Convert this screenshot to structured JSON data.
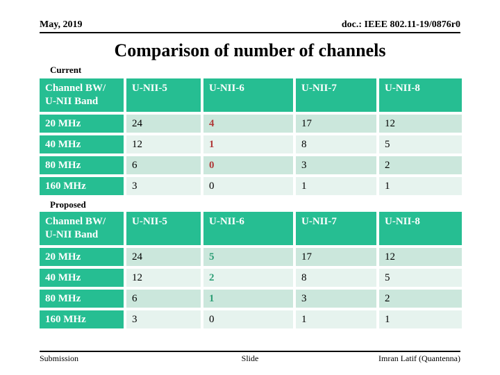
{
  "page": {
    "header_left": "May, 2019",
    "header_right": "doc.: IEEE 802.11-19/0876r0",
    "title": "Comparison of number of channels",
    "footer_left": "Submission",
    "footer_center": "Slide",
    "footer_right": "Imran Latif (Quantenna)"
  },
  "colors": {
    "table_green": "#26BE92",
    "row_light": "#CBE7DC",
    "row_lighter": "#E6F3EE",
    "highlight_red": "#B03A3A",
    "highlight_green": "#2E9E76",
    "header_text": "#FFFFFF"
  },
  "highlight_rules": [
    {
      "table": "Current",
      "column": "U-NII-6",
      "color_name": "red",
      "rows_affected": [
        "20 MHz",
        "40 MHz",
        "80 MHz"
      ]
    },
    {
      "table": "Proposed",
      "column": "U-NII-6",
      "color_name": "green",
      "rows_affected": [
        "20 MHz",
        "40 MHz",
        "80 MHz"
      ]
    }
  ],
  "tables": [
    {
      "label": "Current",
      "columns": [
        "Channel BW/ U-NII Band",
        "U-NII-5",
        "U-NII-6",
        "U-NII-7",
        "U-NII-8"
      ],
      "rows": [
        {
          "label": "20 MHz",
          "cells": [
            "24",
            "4",
            "17",
            "12"
          ]
        },
        {
          "label": "40 MHz",
          "cells": [
            "12",
            "1",
            "8",
            "5"
          ]
        },
        {
          "label": "80 MHz",
          "cells": [
            "6",
            "0",
            "3",
            "2"
          ]
        },
        {
          "label": "160 MHz",
          "cells": [
            "3",
            "0",
            "1",
            "1"
          ]
        }
      ]
    },
    {
      "label": "Proposed",
      "columns": [
        "Channel BW/ U-NII Band",
        "U-NII-5",
        "U-NII-6",
        "U-NII-7",
        "U-NII-8"
      ],
      "rows": [
        {
          "label": "20 MHz",
          "cells": [
            "24",
            "5",
            "17",
            "12"
          ]
        },
        {
          "label": "40 MHz",
          "cells": [
            "12",
            "2",
            "8",
            "5"
          ]
        },
        {
          "label": "80 MHz",
          "cells": [
            "6",
            "1",
            "3",
            "2"
          ]
        },
        {
          "label": "160 MHz",
          "cells": [
            "3",
            "0",
            "1",
            "1"
          ]
        }
      ]
    }
  ]
}
